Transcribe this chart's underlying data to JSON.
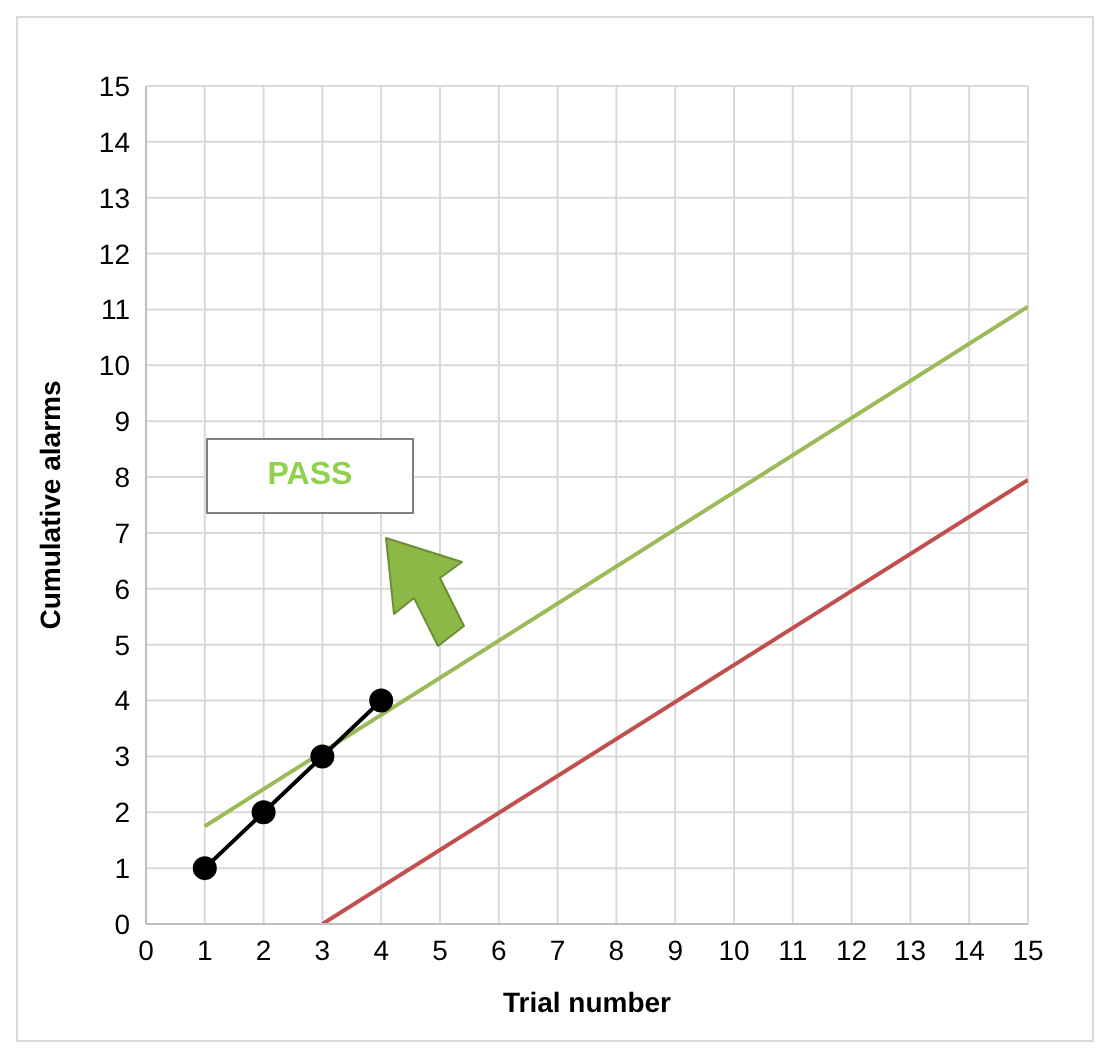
{
  "chart_data": {
    "type": "line",
    "xlabel": "Trial number",
    "ylabel": "Cumulative alarms",
    "annotations": [
      "PASS"
    ],
    "xlim": [
      0,
      15
    ],
    "ylim": [
      0,
      15
    ],
    "xticks": [
      0,
      1,
      2,
      3,
      4,
      5,
      6,
      7,
      8,
      9,
      10,
      11,
      12,
      13,
      14,
      15
    ],
    "yticks": [
      0,
      1,
      2,
      3,
      4,
      5,
      6,
      7,
      8,
      9,
      10,
      11,
      12,
      13,
      14,
      15
    ],
    "grid": true,
    "series": [
      {
        "color": "#9bbb59",
        "x": [
          1,
          15
        ],
        "values": [
          1.75,
          11.05
        ],
        "marker": "none"
      },
      {
        "color": "#c0504d",
        "x": [
          3,
          15
        ],
        "values": [
          0,
          7.95
        ],
        "marker": "none"
      },
      {
        "color": "#000000",
        "x": [
          1,
          2,
          3,
          4
        ],
        "values": [
          1,
          2,
          3,
          4
        ],
        "marker": "circle"
      }
    ]
  }
}
